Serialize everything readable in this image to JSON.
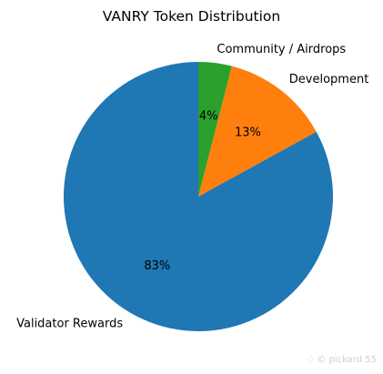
{
  "chart_data": {
    "type": "pie",
    "title": "VANRY Token Distribution",
    "start_angle_deg": 90,
    "direction": "counterclockwise",
    "slices": [
      {
        "label": "Validator Rewards",
        "value": 83,
        "pct_label": "83%",
        "color": "#1f77b4"
      },
      {
        "label": "Development",
        "value": 13,
        "pct_label": "13%",
        "color": "#ff7f0e"
      },
      {
        "label": "Community / Airdrops",
        "value": 4,
        "pct_label": "4%",
        "color": "#2ca02c"
      }
    ]
  },
  "watermark": {
    "icon": "diamond-icon",
    "text": "© pickard 55"
  }
}
